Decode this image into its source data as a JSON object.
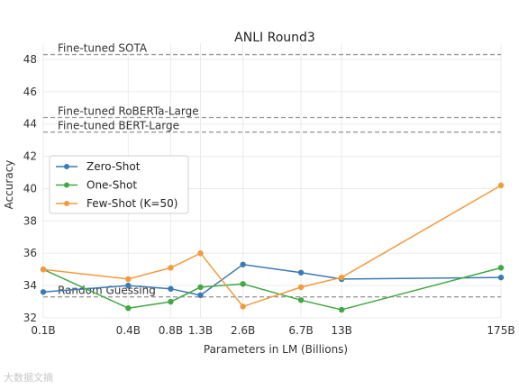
{
  "chart_data": {
    "type": "line",
    "title": "ANLI Round3",
    "xlabel": "Parameters in LM (Billions)",
    "ylabel": "Accuracy",
    "categories": [
      "0.1B",
      "0.4B",
      "0.8B",
      "1.3B",
      "2.6B",
      "6.7B",
      "13B",
      "175B"
    ],
    "x_positions": [
      0.1,
      0.4,
      0.8,
      1.3,
      2.6,
      6.7,
      13,
      175
    ],
    "ylim": [
      32,
      49
    ],
    "yticks": [
      32,
      34,
      36,
      38,
      40,
      42,
      44,
      46,
      48
    ],
    "grid": true,
    "legend_position": "center-left",
    "series": [
      {
        "name": "Zero-Shot",
        "color": "#3a7bb3",
        "values": [
          33.6,
          34.0,
          33.8,
          33.4,
          35.3,
          34.8,
          34.4,
          34.5
        ]
      },
      {
        "name": "One-Shot",
        "color": "#43a843",
        "values": [
          35.0,
          32.6,
          33.0,
          33.9,
          34.1,
          33.1,
          32.5,
          35.1
        ]
      },
      {
        "name": "Few-Shot (K=50)",
        "color": "#f39a3d",
        "values": [
          35.0,
          34.4,
          35.1,
          36.0,
          32.7,
          33.9,
          34.5,
          40.2
        ]
      }
    ],
    "reference_lines": [
      {
        "label": "Fine-tuned SOTA",
        "value": 48.3
      },
      {
        "label": "Fine-tuned RoBERTa-Large",
        "value": 44.4
      },
      {
        "label": "Fine-tuned BERT-Large",
        "value": 43.5
      },
      {
        "label": "Random Guessing",
        "value": 33.3
      }
    ]
  },
  "watermark": "大数据文摘"
}
